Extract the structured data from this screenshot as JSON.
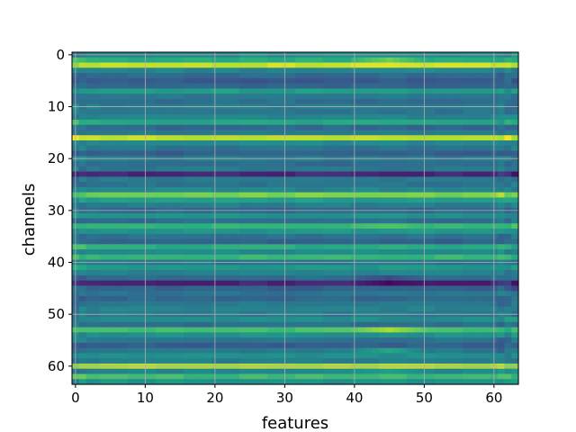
{
  "chart_data": {
    "type": "heatmap",
    "colormap": "viridis",
    "title": "",
    "xlabel": "features",
    "ylabel": "channels",
    "n_features": 64,
    "n_channels": 64,
    "xlim": [
      -0.5,
      63.5
    ],
    "ylim": [
      63.5,
      -0.5
    ],
    "xticks": [
      0,
      10,
      20,
      30,
      40,
      50,
      60
    ],
    "yticks": [
      0,
      10,
      20,
      30,
      40,
      50,
      60
    ],
    "grid": true,
    "value_range": [
      0,
      1
    ],
    "row_base_values": [
      0.48,
      0.62,
      0.92,
      0.45,
      0.35,
      0.28,
      0.32,
      0.55,
      0.4,
      0.36,
      0.42,
      0.38,
      0.45,
      0.6,
      0.33,
      0.4,
      0.9,
      0.47,
      0.38,
      0.3,
      0.42,
      0.35,
      0.4,
      0.12,
      0.4,
      0.38,
      0.45,
      0.8,
      0.55,
      0.42,
      0.33,
      0.5,
      0.36,
      0.66,
      0.52,
      0.38,
      0.3,
      0.62,
      0.47,
      0.66,
      0.4,
      0.52,
      0.44,
      0.36,
      0.1,
      0.3,
      0.38,
      0.33,
      0.4,
      0.44,
      0.4,
      0.48,
      0.36,
      0.7,
      0.5,
      0.38,
      0.3,
      0.4,
      0.5,
      0.42,
      0.88,
      0.45,
      0.68,
      0.5
    ],
    "highlight_columns": [
      40,
      50
    ],
    "highlight_rows": {
      "1": 0.78,
      "2": 0.96,
      "33": 0.72,
      "43": 0.22,
      "44": 0.02,
      "53": 0.88,
      "57": 0.6,
      "61": 0.55
    }
  }
}
